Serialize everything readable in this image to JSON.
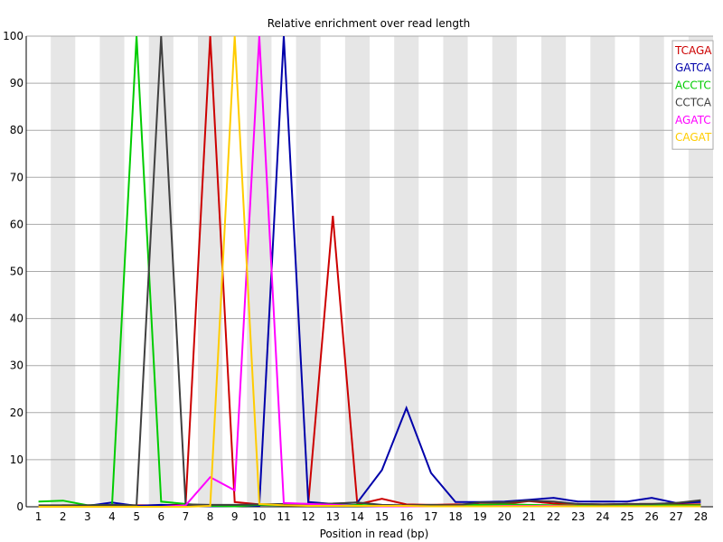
{
  "chart_data": {
    "type": "line",
    "title": "Relative enrichment over read length",
    "xlabel": "Position in read (bp)",
    "ylabel": "",
    "x": [
      1,
      2,
      3,
      4,
      5,
      6,
      7,
      8,
      9,
      10,
      11,
      12,
      13,
      14,
      15,
      16,
      17,
      18,
      19,
      20,
      21,
      22,
      23,
      24,
      25,
      26,
      27,
      28
    ],
    "xlim": [
      1,
      28
    ],
    "ylim": [
      0,
      100
    ],
    "yticks": [
      0,
      10,
      20,
      30,
      40,
      50,
      60,
      70,
      80,
      90,
      100
    ],
    "grid": true,
    "legend_position": "top-right",
    "series": [
      {
        "name": "TCAGA",
        "color": "#cc0000",
        "values": [
          0.0,
          0.3,
          0.3,
          0.3,
          0.3,
          0.3,
          0.5,
          100.0,
          1.0,
          0.5,
          0.5,
          0.6,
          61.8,
          0.5,
          1.7,
          0.5,
          0.4,
          0.5,
          0.5,
          0.6,
          1.2,
          0.7,
          0.6,
          0.5,
          0.6,
          0.6,
          0.5,
          0.5
        ]
      },
      {
        "name": "GATCA",
        "color": "#0000aa",
        "values": [
          0.0,
          0.0,
          0.2,
          0.9,
          0.2,
          0.4,
          0.2,
          0.1,
          0.2,
          0.2,
          100.0,
          1.0,
          0.6,
          0.9,
          7.8,
          21.0,
          7.2,
          1.0,
          1.0,
          1.1,
          1.5,
          1.9,
          1.1,
          1.1,
          1.1,
          1.9,
          0.8,
          1.0
        ]
      },
      {
        "name": "ACCTC",
        "color": "#00cc00",
        "values": [
          1.1,
          1.3,
          0.3,
          0.4,
          100.0,
          1.1,
          0.6,
          0.2,
          0.1,
          0.4,
          0.3,
          0.4,
          0.3,
          0.4,
          0.2,
          0.2,
          0.2,
          0.3,
          0.4,
          0.5,
          0.4,
          0.3,
          0.2,
          0.2,
          0.2,
          0.3,
          0.3,
          0.3
        ]
      },
      {
        "name": "CCTCA",
        "color": "#404040",
        "values": [
          0.3,
          0.3,
          0.3,
          0.4,
          0.3,
          100.0,
          0.5,
          0.4,
          0.4,
          0.5,
          0.6,
          0.6,
          0.7,
          0.9,
          0.4,
          0.3,
          0.4,
          0.3,
          0.9,
          0.9,
          1.3,
          1.1,
          0.6,
          0.5,
          0.6,
          0.6,
          0.8,
          1.4
        ]
      },
      {
        "name": "AGATC",
        "color": "#ff00ff",
        "values": [
          0.0,
          0.0,
          0.0,
          0.0,
          0.0,
          0.0,
          0.3,
          6.3,
          3.5,
          100.0,
          0.8,
          0.6,
          0.4,
          0.2,
          0.1,
          0.1,
          0.1,
          0.1,
          0.1,
          0.2,
          0.2,
          0.2,
          0.1,
          0.1,
          0.1,
          0.1,
          0.1,
          0.1
        ]
      },
      {
        "name": "CAGAT",
        "color": "#ffcc00",
        "values": [
          0.0,
          0.0,
          0.0,
          0.0,
          0.0,
          0.0,
          0.0,
          0.2,
          100.0,
          0.6,
          0.3,
          0.2,
          0.2,
          0.2,
          0.2,
          0.2,
          0.1,
          0.1,
          0.1,
          0.1,
          0.1,
          0.1,
          0.1,
          0.1,
          0.1,
          0.1,
          0.1,
          0.1
        ]
      }
    ]
  }
}
